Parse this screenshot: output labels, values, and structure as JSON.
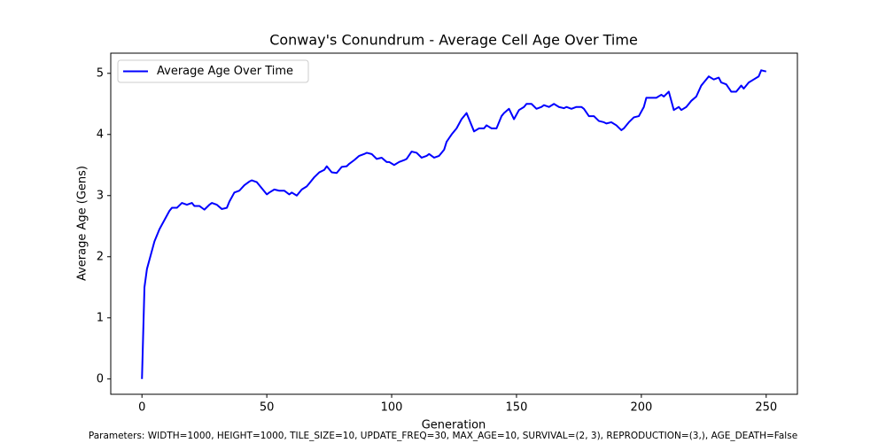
{
  "chart_data": {
    "type": "line",
    "title": "Conway's Conundrum - Average Cell Age Over Time",
    "xlabel": "Generation",
    "ylabel": "Average Age (Gens)",
    "footnote": "Parameters: WIDTH=1000, HEIGHT=1000, TILE_SIZE=10, UPDATE_FREQ=30, MAX_AGE=10, SURVIVAL=(2, 3), REPRODUCTION=(3,), AGE_DEATH=False",
    "x": [
      0,
      1,
      2,
      4,
      5,
      7,
      9,
      11,
      12,
      14,
      16,
      18,
      20,
      21,
      23,
      25,
      27,
      28,
      30,
      32,
      34,
      35,
      37,
      39,
      41,
      43,
      44,
      46,
      48,
      50,
      51,
      53,
      55,
      57,
      59,
      60,
      62,
      64,
      66,
      67,
      69,
      71,
      73,
      74,
      76,
      78,
      80,
      82,
      83,
      85,
      87,
      89,
      90,
      92,
      94,
      96,
      98,
      99,
      101,
      103,
      105,
      106,
      108,
      110,
      112,
      114,
      115,
      117,
      119,
      121,
      122,
      124,
      126,
      128,
      130,
      131,
      133,
      135,
      137,
      138,
      140,
      142,
      144,
      145,
      147,
      149,
      151,
      153,
      154,
      156,
      158,
      160,
      161,
      163,
      165,
      167,
      169,
      170,
      172,
      174,
      176,
      177,
      179,
      181,
      183,
      185,
      186,
      188,
      190,
      192,
      193,
      195,
      197,
      199,
      201,
      202,
      204,
      206,
      208,
      209,
      211,
      213,
      215,
      216,
      218,
      220,
      222,
      224,
      225,
      227,
      229,
      231,
      232,
      234,
      236,
      238,
      240,
      241,
      243,
      245,
      247,
      248,
      250
    ],
    "series": [
      {
        "name": "Average Age Over Time",
        "color": "#0000ff",
        "values": [
          0,
          1.5,
          1.8,
          2.1,
          2.25,
          2.45,
          2.6,
          2.75,
          2.8,
          2.8,
          2.88,
          2.85,
          2.88,
          2.83,
          2.83,
          2.77,
          2.85,
          2.88,
          2.85,
          2.78,
          2.8,
          2.9,
          3.05,
          3.08,
          3.17,
          3.23,
          3.25,
          3.22,
          3.12,
          3.02,
          3.05,
          3.1,
          3.08,
          3.08,
          3.02,
          3.05,
          3.0,
          3.1,
          3.15,
          3.2,
          3.3,
          3.38,
          3.42,
          3.48,
          3.38,
          3.37,
          3.47,
          3.48,
          3.52,
          3.58,
          3.65,
          3.68,
          3.7,
          3.68,
          3.6,
          3.62,
          3.55,
          3.55,
          3.5,
          3.55,
          3.58,
          3.6,
          3.72,
          3.7,
          3.62,
          3.65,
          3.68,
          3.62,
          3.65,
          3.75,
          3.88,
          4.0,
          4.1,
          4.25,
          4.35,
          4.25,
          4.05,
          4.1,
          4.1,
          4.15,
          4.1,
          4.1,
          4.3,
          4.35,
          4.42,
          4.25,
          4.4,
          4.45,
          4.5,
          4.5,
          4.42,
          4.45,
          4.48,
          4.45,
          4.5,
          4.45,
          4.43,
          4.45,
          4.42,
          4.45,
          4.45,
          4.42,
          4.3,
          4.3,
          4.22,
          4.2,
          4.18,
          4.2,
          4.15,
          4.07,
          4.1,
          4.2,
          4.28,
          4.3,
          4.45,
          4.6,
          4.6,
          4.6,
          4.65,
          4.62,
          4.7,
          4.4,
          4.45,
          4.4,
          4.45,
          4.55,
          4.62,
          4.8,
          4.85,
          4.95,
          4.9,
          4.93,
          4.85,
          4.82,
          4.7,
          4.7,
          4.8,
          4.75,
          4.85,
          4.9,
          4.95,
          5.05,
          5.03
        ]
      }
    ],
    "xlim": [
      -12.5,
      262.5
    ],
    "ylim": [
      -0.25,
      5.33
    ],
    "xticks": [
      0,
      50,
      100,
      150,
      200,
      250
    ],
    "yticks": [
      0,
      1,
      2,
      3,
      4,
      5
    ],
    "legend": "upper left"
  }
}
